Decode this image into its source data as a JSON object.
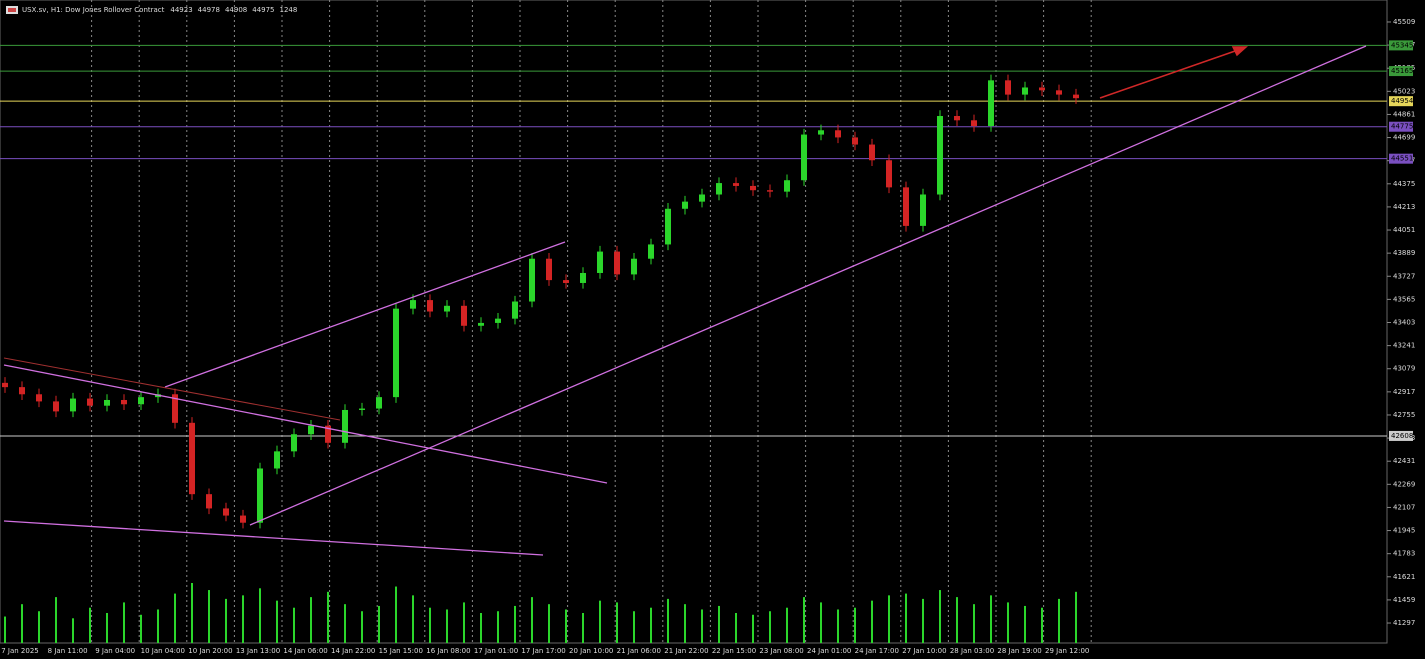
{
  "chart_data": {
    "type": "candlestick",
    "title": "USX.sv, H1: Dow Jones Rollover Contract",
    "quote": [
      44923,
      44978,
      44908,
      44975,
      1248
    ],
    "time_labels": [
      "7 Jan 2025",
      "8 Jan 11:00",
      "9 Jan 04:00",
      "10 Jan 04:00",
      "10 Jan 20:00",
      "13 Jan 13:00",
      "14 Jan 06:00",
      "14 Jan 22:00",
      "15 Jan 15:00",
      "16 Jan 08:00",
      "17 Jan 01:00",
      "17 Jan 17:00",
      "20 Jan 10:00",
      "21 Jan 06:00",
      "21 Jan 22:00",
      "22 Jan 15:00",
      "23 Jan 08:00",
      "24 Jan 01:00",
      "24 Jan 17:00",
      "27 Jan 10:00",
      "28 Jan 03:00",
      "28 Jan 19:00",
      "29 Jan 12:00"
    ],
    "open": [
      42980,
      42950,
      42900,
      42850,
      42780,
      42870,
      42820,
      42860,
      42830,
      42880,
      42900,
      42700,
      42200,
      42100,
      42050,
      42000,
      42380,
      42500,
      42620,
      42680,
      42560,
      42790,
      42800,
      42880,
      43500,
      43560,
      43480,
      43520,
      43380,
      43400,
      43430,
      43550,
      43850,
      43700,
      43680,
      43750,
      43900,
      43740,
      43850,
      43950,
      44200,
      44250,
      44300,
      44380,
      44360,
      44330,
      44320,
      44400,
      44720,
      44750,
      44700,
      44650,
      44540,
      44350,
      44080,
      44300,
      44850,
      44820,
      44780,
      45100,
      45000,
      45050,
      45030,
      45000
    ],
    "high": [
      43020,
      42990,
      42940,
      42890,
      42910,
      42910,
      42900,
      42900,
      42920,
      42940,
      42940,
      42740,
      42240,
      42140,
      42090,
      42420,
      42540,
      42660,
      42720,
      42720,
      42830,
      42840,
      42920,
      43540,
      43600,
      43600,
      43560,
      43560,
      43440,
      43470,
      43590,
      43890,
      43890,
      43740,
      43790,
      43940,
      43940,
      43890,
      43990,
      44240,
      44290,
      44340,
      44420,
      44420,
      44400,
      44370,
      44440,
      44760,
      44790,
      44790,
      44740,
      44690,
      44580,
      44390,
      44340,
      44890,
      44890,
      44860,
      45140,
      45140,
      45090,
      45090,
      45070,
      45040
    ],
    "low": [
      42910,
      42860,
      42810,
      42740,
      42740,
      42780,
      42780,
      42790,
      42790,
      42840,
      42660,
      42160,
      42060,
      42010,
      41960,
      41960,
      42340,
      42460,
      42580,
      42520,
      42520,
      42750,
      42760,
      42840,
      43460,
      43440,
      43440,
      43340,
      43340,
      43360,
      43390,
      43510,
      43660,
      43640,
      43640,
      43710,
      43700,
      43700,
      43810,
      43910,
      44160,
      44210,
      44260,
      44320,
      44290,
      44280,
      44280,
      44360,
      44680,
      44660,
      44610,
      44500,
      44310,
      44040,
      44040,
      44260,
      44780,
      44740,
      44740,
      44960,
      44960,
      44990,
      44960,
      44935
    ],
    "close": [
      42950,
      42900,
      42850,
      42780,
      42870,
      42820,
      42860,
      42830,
      42880,
      42900,
      42700,
      42200,
      42100,
      42050,
      42000,
      42380,
      42500,
      42620,
      42680,
      42560,
      42790,
      42800,
      42880,
      43500,
      43560,
      43480,
      43520,
      43380,
      43400,
      43430,
      43550,
      43850,
      43700,
      43680,
      43750,
      43900,
      43740,
      43850,
      43950,
      44200,
      44250,
      44300,
      44380,
      44360,
      44330,
      44320,
      44400,
      44720,
      44750,
      44700,
      44650,
      44540,
      44350,
      44080,
      44300,
      44850,
      44820,
      44780,
      45100,
      45000,
      45050,
      45030,
      45000,
      44975
    ],
    "volume": [
      1500,
      2200,
      1800,
      2600,
      1400,
      2000,
      1700,
      2300,
      1600,
      1900,
      2800,
      3400,
      3000,
      2500,
      2700,
      3100,
      2400,
      2000,
      2600,
      2900,
      2200,
      1800,
      2100,
      3200,
      2700,
      2000,
      1900,
      2300,
      1700,
      1800,
      2100,
      2600,
      2200,
      1900,
      1700,
      2400,
      2300,
      1800,
      2000,
      2500,
      2200,
      1900,
      2100,
      1700,
      1600,
      1800,
      2000,
      2600,
      2300,
      1900,
      2000,
      2400,
      2700,
      2800,
      2500,
      3000,
      2600,
      2200,
      2700,
      2300,
      2100,
      2000,
      2500,
      2900
    ],
    "up_color": "#2bd62b",
    "down_color": "#d42424",
    "volume_color": "#2bd62b",
    "ylim": [
      41157,
      45663
    ],
    "yticks": [
      45509,
      45347,
      45185,
      45023,
      44861,
      44699,
      44537,
      44375,
      44213,
      44051,
      43889,
      43727,
      43565,
      43403,
      43241,
      43079,
      42917,
      42755,
      42593,
      42431,
      42269,
      42107,
      41945,
      41783,
      41621,
      41459,
      41297
    ],
    "levels": [
      {
        "value": 45345,
        "color": "#3a9a3a"
      },
      {
        "value": 45165,
        "color": "#3a9a3a"
      },
      {
        "value": 44954,
        "color": "#e6d65a"
      },
      {
        "value": 44775,
        "color": "#7a4fc0"
      },
      {
        "value": 44551,
        "color": "#7a4fc0"
      },
      {
        "value": 42608,
        "color": "#cccccc"
      }
    ],
    "grid": true
  }
}
